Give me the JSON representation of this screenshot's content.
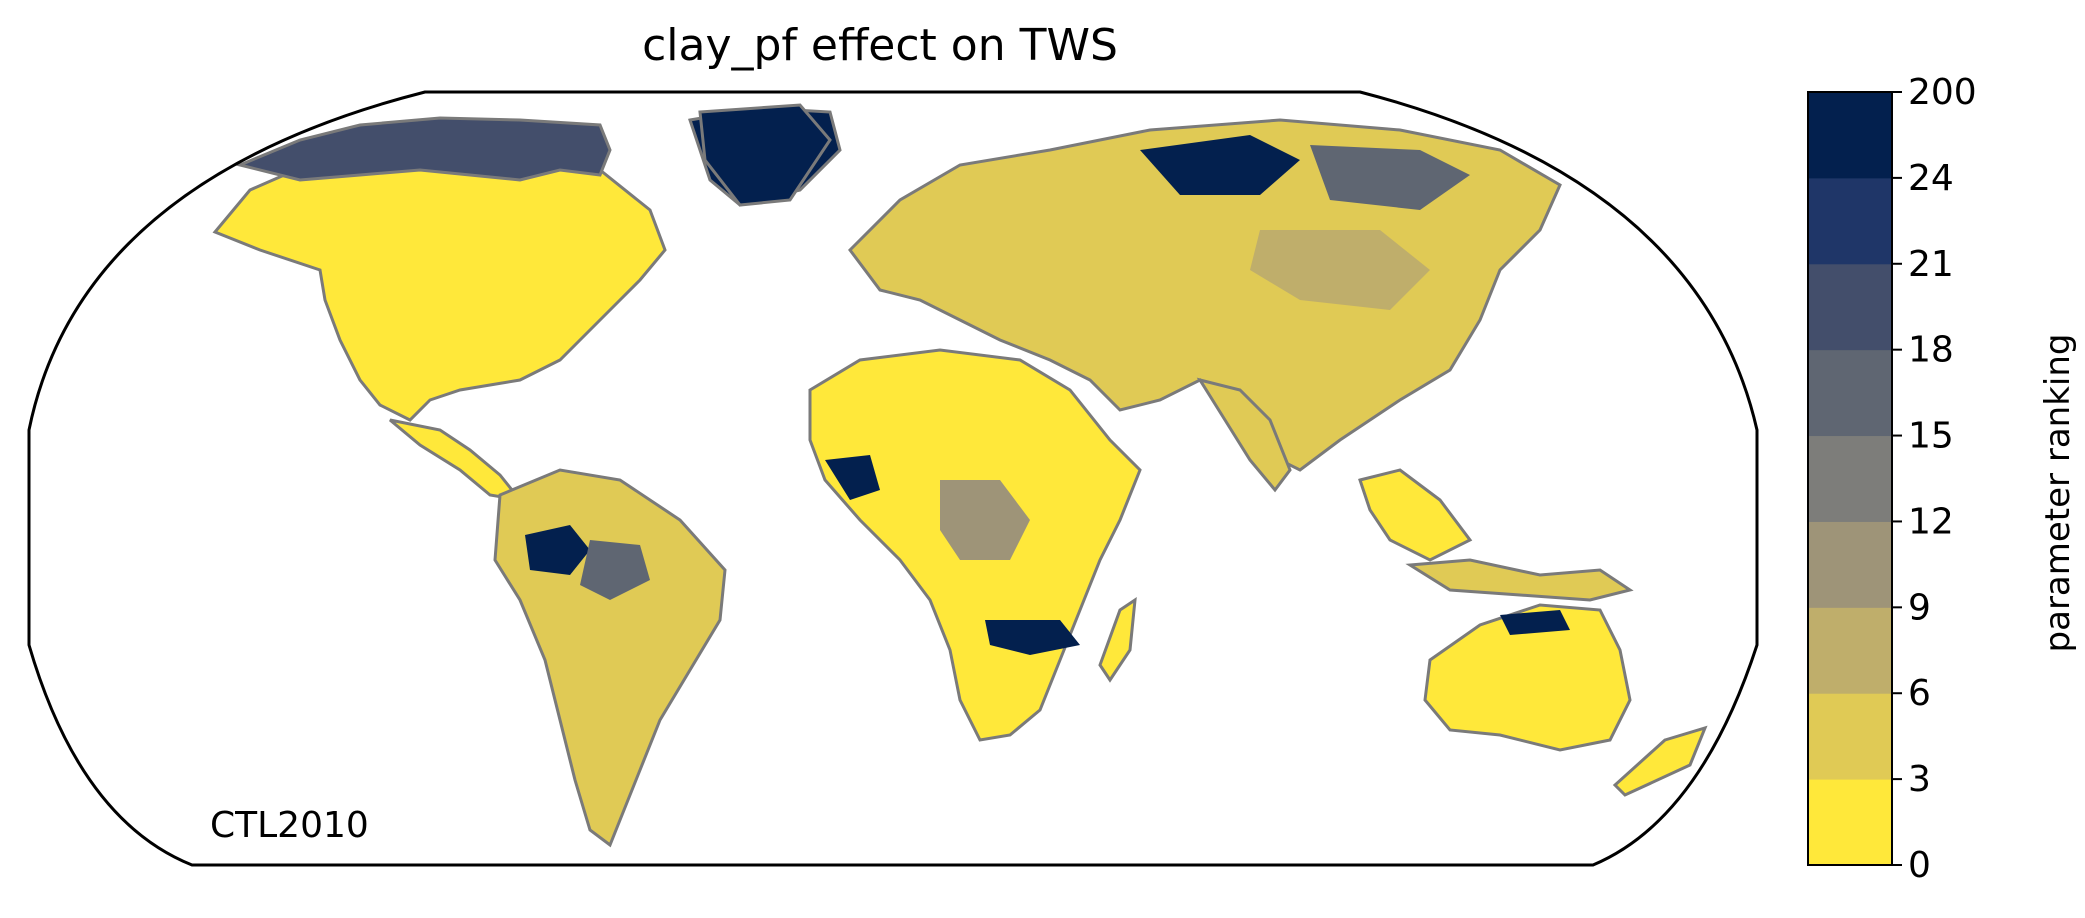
{
  "title": "clay_pf effect on TWS",
  "run_label": "CTL2010",
  "colorbar": {
    "label": "parameter ranking",
    "ticks": [
      "0",
      "3",
      "6",
      "9",
      "12",
      "15",
      "18",
      "21",
      "24",
      "200"
    ],
    "bins": [
      {
        "from": 0,
        "to": 3,
        "color": "#ffe83a"
      },
      {
        "from": 3,
        "to": 6,
        "color": "#e0ca55"
      },
      {
        "from": 6,
        "to": 9,
        "color": "#bfae6b"
      },
      {
        "from": 9,
        "to": 12,
        "color": "#9e9478"
      },
      {
        "from": 12,
        "to": 15,
        "color": "#7d7d7a"
      },
      {
        "from": 15,
        "to": 18,
        "color": "#5f6672"
      },
      {
        "from": 18,
        "to": 21,
        "color": "#434e6b"
      },
      {
        "from": 21,
        "to": 24,
        "color": "#1f3668"
      },
      {
        "from": 24,
        "to": 200,
        "color": "#03204e"
      }
    ]
  },
  "map_colors": {
    "coastline": "#7a7a7a",
    "frame": "#000000"
  }
}
